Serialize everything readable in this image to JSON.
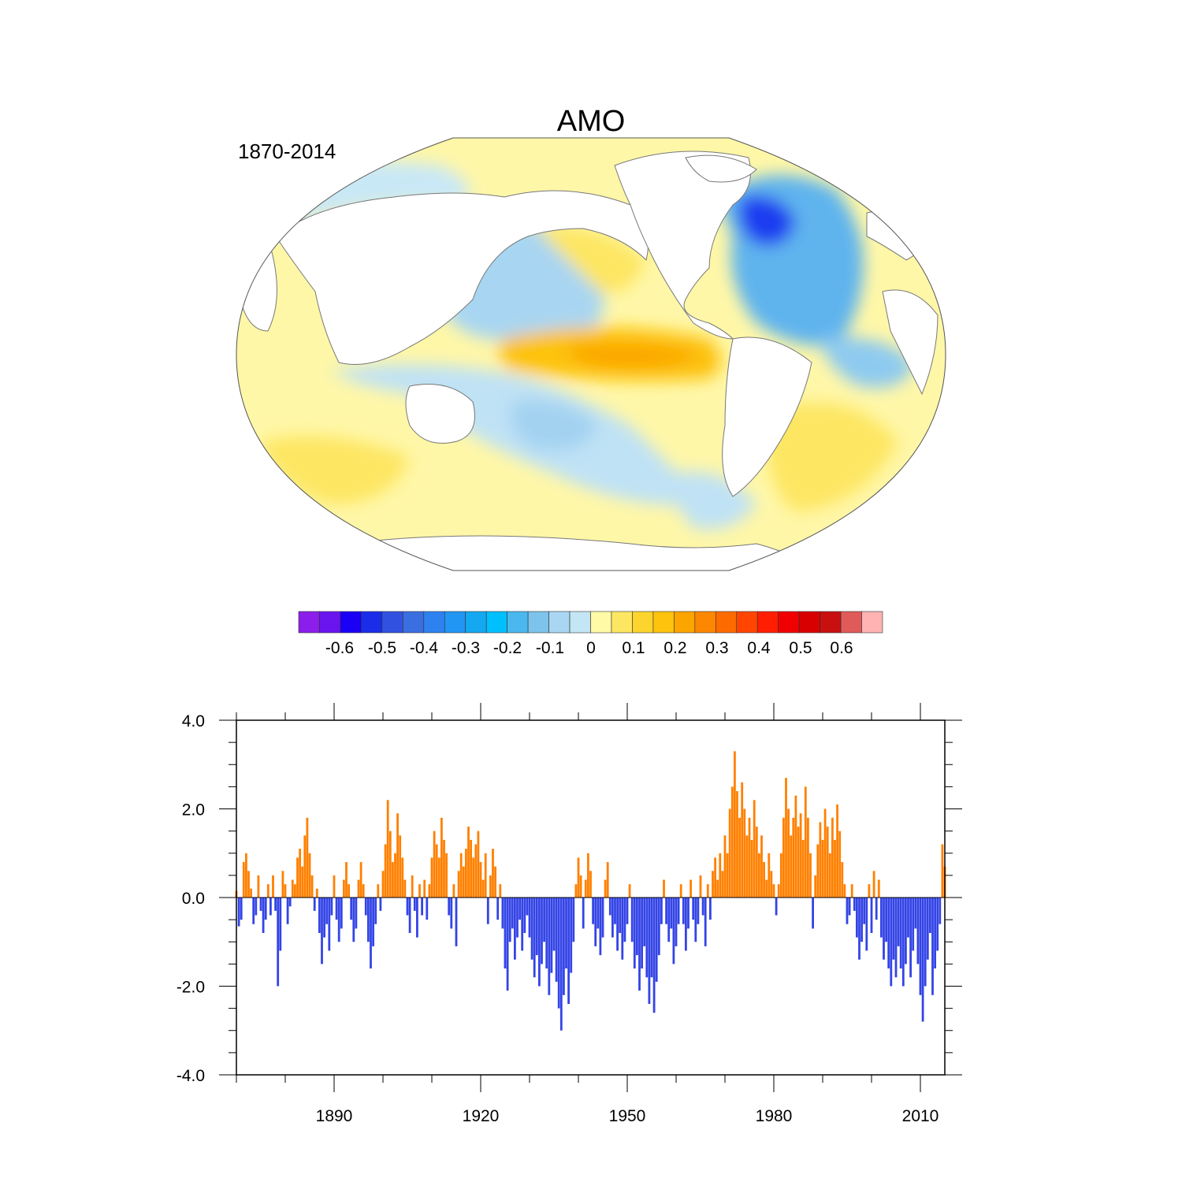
{
  "map": {
    "title": "AMO",
    "period": "1870-2014",
    "projection": "Winkel tripel / Robinson-like, Pacific-centered",
    "colors": {
      "land": "#ffffff",
      "strong_negative_north_atlantic": "#1a3cf0",
      "negative": "#8ecaf0",
      "weak_negative": "#bfe2f5",
      "weak_positive": "#fff7a8",
      "positive": "#fdd23a",
      "strong_positive_east_pacific": "#fca500"
    }
  },
  "colorbar": {
    "colors": [
      "#8b1eea",
      "#6a14ee",
      "#1a00f5",
      "#1a2ee8",
      "#3152e0",
      "#3a6fe2",
      "#2d82f0",
      "#2196f3",
      "#14a8f0",
      "#00bfff",
      "#4ab8ee",
      "#7dc3ec",
      "#a9d6f2",
      "#c3e5f4",
      "#fffaa6",
      "#fde662",
      "#fcd42d",
      "#fdc30d",
      "#fca500",
      "#fd8700",
      "#fd6a00",
      "#ff4500",
      "#ff1e00",
      "#f00000",
      "#d80000",
      "#c81010",
      "#e05a5a",
      "#ffb3b3"
    ],
    "labels": [
      "-0.6",
      "-0.5",
      "-0.4",
      "-0.3",
      "-0.2",
      "-0.1",
      "0",
      "0.1",
      "0.2",
      "0.3",
      "0.4",
      "0.5",
      "0.6"
    ]
  },
  "chart_data": {
    "type": "bar",
    "title": "",
    "xlabel": "",
    "ylabel": "",
    "x_range": [
      1870,
      2015
    ],
    "ylim": [
      -4.0,
      4.0
    ],
    "x_ticks": [
      "1890",
      "1920",
      "1950",
      "1980",
      "2010"
    ],
    "y_ticks": [
      "4.0",
      "2.0",
      "0.0",
      "-2.0",
      "-4.0"
    ],
    "positive_color": "#ff8000",
    "negative_color": "#3344e6",
    "grid": false,
    "legend": "none",
    "series": [
      {
        "name": "",
        "points": [
          [
            1870.0,
            0.15
          ],
          [
            1870.5,
            -0.65
          ],
          [
            1871.0,
            -0.5
          ],
          [
            1871.5,
            0.8
          ],
          [
            1872.0,
            1.0
          ],
          [
            1872.5,
            0.6
          ],
          [
            1873.0,
            0.2
          ],
          [
            1873.5,
            -0.6
          ],
          [
            1874.0,
            -0.4
          ],
          [
            1874.5,
            0.5
          ],
          [
            1875.0,
            -0.3
          ],
          [
            1875.5,
            -0.8
          ],
          [
            1876.0,
            -0.5
          ],
          [
            1876.5,
            0.3
          ],
          [
            1877.0,
            -0.4
          ],
          [
            1877.5,
            0.5
          ],
          [
            1878.0,
            -0.3
          ],
          [
            1878.5,
            -2.0
          ],
          [
            1879.0,
            -1.2
          ],
          [
            1879.5,
            0.6
          ],
          [
            1880.0,
            0.3
          ],
          [
            1880.5,
            -0.6
          ],
          [
            1881.0,
            -0.2
          ],
          [
            1881.5,
            0.4
          ],
          [
            1882.0,
            0.3
          ],
          [
            1882.5,
            0.9
          ],
          [
            1883.0,
            1.1
          ],
          [
            1883.5,
            0.7
          ],
          [
            1884.0,
            1.4
          ],
          [
            1884.5,
            1.8
          ],
          [
            1885.0,
            1.0
          ],
          [
            1885.5,
            0.5
          ],
          [
            1886.0,
            -0.3
          ],
          [
            1886.5,
            0.2
          ],
          [
            1887.0,
            -0.8
          ],
          [
            1887.5,
            -1.5
          ],
          [
            1888.0,
            -0.9
          ],
          [
            1888.5,
            -0.6
          ],
          [
            1889.0,
            -1.2
          ],
          [
            1889.5,
            -0.4
          ],
          [
            1890.0,
            0.5
          ],
          [
            1890.5,
            -0.5
          ],
          [
            1891.0,
            -1.0
          ],
          [
            1891.5,
            -0.7
          ],
          [
            1892.0,
            0.4
          ],
          [
            1892.5,
            0.8
          ],
          [
            1893.0,
            0.3
          ],
          [
            1893.5,
            -0.5
          ],
          [
            1894.0,
            -1.0
          ],
          [
            1894.5,
            -0.7
          ],
          [
            1895.0,
            0.4
          ],
          [
            1895.5,
            0.8
          ],
          [
            1896.0,
            0.3
          ],
          [
            1896.5,
            -0.4
          ],
          [
            1897.0,
            -1.0
          ],
          [
            1897.5,
            -1.6
          ],
          [
            1898.0,
            -1.1
          ],
          [
            1898.5,
            -0.6
          ],
          [
            1899.0,
            0.3
          ],
          [
            1899.5,
            -0.3
          ],
          [
            1900.0,
            0.6
          ],
          [
            1900.5,
            1.2
          ],
          [
            1901.0,
            2.2
          ],
          [
            1901.5,
            1.5
          ],
          [
            1902.0,
            0.8
          ],
          [
            1902.5,
            1.0
          ],
          [
            1903.0,
            1.9
          ],
          [
            1903.5,
            1.4
          ],
          [
            1904.0,
            0.9
          ],
          [
            1904.5,
            0.4
          ],
          [
            1905.0,
            -0.4
          ],
          [
            1905.5,
            -0.8
          ],
          [
            1906.0,
            0.5
          ],
          [
            1906.5,
            -0.3
          ],
          [
            1907.0,
            -0.9
          ],
          [
            1907.5,
            0.3
          ],
          [
            1908.0,
            -0.4
          ],
          [
            1908.5,
            0.4
          ],
          [
            1909.0,
            -0.5
          ],
          [
            1909.5,
            0.3
          ],
          [
            1910.0,
            0.9
          ],
          [
            1910.5,
            1.5
          ],
          [
            1911.0,
            1.2
          ],
          [
            1911.5,
            0.9
          ],
          [
            1912.0,
            1.8
          ],
          [
            1912.5,
            1.3
          ],
          [
            1913.0,
            1.0
          ],
          [
            1913.5,
            -0.4
          ],
          [
            1914.0,
            -0.7
          ],
          [
            1914.5,
            0.3
          ],
          [
            1915.0,
            -1.1
          ],
          [
            1915.5,
            0.6
          ],
          [
            1916.0,
            1.0
          ],
          [
            1916.5,
            0.7
          ],
          [
            1917.0,
            1.1
          ],
          [
            1917.5,
            1.6
          ],
          [
            1918.0,
            1.3
          ],
          [
            1918.5,
            0.9
          ],
          [
            1919.0,
            1.2
          ],
          [
            1919.5,
            1.5
          ],
          [
            1920.0,
            0.8
          ],
          [
            1920.5,
            0.4
          ],
          [
            1921.0,
            1.0
          ],
          [
            1921.5,
            -0.6
          ],
          [
            1922.0,
            0.5
          ],
          [
            1922.5,
            1.1
          ],
          [
            1923.0,
            0.7
          ],
          [
            1923.5,
            -0.5
          ],
          [
            1924.0,
            0.3
          ],
          [
            1924.5,
            -0.7
          ],
          [
            1925.0,
            -1.6
          ],
          [
            1925.5,
            -2.1
          ],
          [
            1926.0,
            -1.0
          ],
          [
            1926.5,
            -0.7
          ],
          [
            1927.0,
            -1.4
          ],
          [
            1927.5,
            -0.9
          ],
          [
            1928.0,
            -0.5
          ],
          [
            1928.5,
            -1.2
          ],
          [
            1929.0,
            -0.8
          ],
          [
            1929.5,
            -0.4
          ],
          [
            1930.0,
            -0.9
          ],
          [
            1930.5,
            -1.4
          ],
          [
            1931.0,
            -1.8
          ],
          [
            1931.5,
            -1.3
          ],
          [
            1932.0,
            -2.0
          ],
          [
            1932.5,
            -1.5
          ],
          [
            1933.0,
            -1.0
          ],
          [
            1933.5,
            -1.6
          ],
          [
            1934.0,
            -2.2
          ],
          [
            1934.5,
            -1.7
          ],
          [
            1935.0,
            -1.2
          ],
          [
            1935.5,
            -1.9
          ],
          [
            1936.0,
            -2.5
          ],
          [
            1936.5,
            -3.0
          ],
          [
            1937.0,
            -2.2
          ],
          [
            1937.5,
            -1.6
          ],
          [
            1938.0,
            -2.4
          ],
          [
            1938.5,
            -1.7
          ],
          [
            1939.0,
            -1.0
          ],
          [
            1939.5,
            0.3
          ],
          [
            1940.0,
            0.9
          ],
          [
            1940.5,
            0.5
          ],
          [
            1941.0,
            -0.7
          ],
          [
            1941.5,
            0.4
          ],
          [
            1942.0,
            1.0
          ],
          [
            1942.5,
            0.6
          ],
          [
            1943.0,
            -0.6
          ],
          [
            1943.5,
            -1.1
          ],
          [
            1944.0,
            -0.7
          ],
          [
            1944.5,
            -1.3
          ],
          [
            1945.0,
            -0.9
          ],
          [
            1945.5,
            0.4
          ],
          [
            1946.0,
            0.8
          ],
          [
            1946.5,
            -0.4
          ],
          [
            1947.0,
            -0.9
          ],
          [
            1947.5,
            -0.6
          ],
          [
            1948.0,
            -1.2
          ],
          [
            1948.5,
            -0.8
          ],
          [
            1949.0,
            -1.4
          ],
          [
            1949.5,
            -1.0
          ],
          [
            1950.0,
            -0.6
          ],
          [
            1950.5,
            0.3
          ],
          [
            1951.0,
            -1.0
          ],
          [
            1951.5,
            -1.6
          ],
          [
            1952.0,
            -1.3
          ],
          [
            1952.5,
            -2.1
          ],
          [
            1953.0,
            -1.6
          ],
          [
            1953.5,
            -1.1
          ],
          [
            1954.0,
            -1.8
          ],
          [
            1954.5,
            -2.4
          ],
          [
            1955.0,
            -1.8
          ],
          [
            1955.5,
            -2.6
          ],
          [
            1956.0,
            -1.9
          ],
          [
            1956.5,
            -1.3
          ],
          [
            1957.0,
            -0.6
          ],
          [
            1957.5,
            0.4
          ],
          [
            1958.0,
            -0.6
          ],
          [
            1958.5,
            -1.0
          ],
          [
            1959.0,
            -0.7
          ],
          [
            1959.5,
            -1.5
          ],
          [
            1960.0,
            -1.1
          ],
          [
            1960.5,
            -0.6
          ],
          [
            1961.0,
            0.3
          ],
          [
            1961.5,
            -0.6
          ],
          [
            1962.0,
            -1.2
          ],
          [
            1962.5,
            -0.7
          ],
          [
            1963.0,
            0.4
          ],
          [
            1963.5,
            -0.5
          ],
          [
            1964.0,
            -1.0
          ],
          [
            1964.5,
            -0.6
          ],
          [
            1965.0,
            0.5
          ],
          [
            1965.5,
            -0.4
          ],
          [
            1966.0,
            -1.1
          ],
          [
            1966.5,
            0.3
          ],
          [
            1967.0,
            -0.5
          ],
          [
            1967.5,
            0.6
          ],
          [
            1968.0,
            0.9
          ],
          [
            1968.5,
            0.4
          ],
          [
            1969.0,
            1.0
          ],
          [
            1969.5,
            0.6
          ],
          [
            1970.0,
            1.4
          ],
          [
            1970.5,
            1.0
          ],
          [
            1971.0,
            2.0
          ],
          [
            1971.5,
            2.5
          ],
          [
            1972.0,
            3.3
          ],
          [
            1972.5,
            2.4
          ],
          [
            1973.0,
            1.8
          ],
          [
            1973.5,
            2.6
          ],
          [
            1974.0,
            2.0
          ],
          [
            1974.5,
            1.4
          ],
          [
            1975.0,
            1.8
          ],
          [
            1975.5,
            1.3
          ],
          [
            1976.0,
            2.2
          ],
          [
            1976.5,
            1.6
          ],
          [
            1977.0,
            1.0
          ],
          [
            1977.5,
            1.4
          ],
          [
            1978.0,
            0.8
          ],
          [
            1978.5,
            0.4
          ],
          [
            1979.0,
            1.0
          ],
          [
            1979.5,
            0.6
          ],
          [
            1980.0,
            0.3
          ],
          [
            1980.5,
            -0.4
          ],
          [
            1981.0,
            0.3
          ],
          [
            1981.5,
            1.0
          ],
          [
            1982.0,
            1.8
          ],
          [
            1982.5,
            2.7
          ],
          [
            1983.0,
            2.0
          ],
          [
            1983.5,
            1.4
          ],
          [
            1984.0,
            1.8
          ],
          [
            1984.5,
            2.3
          ],
          [
            1985.0,
            1.6
          ],
          [
            1985.5,
            1.9
          ],
          [
            1986.0,
            1.3
          ],
          [
            1986.5,
            2.5
          ],
          [
            1987.0,
            1.8
          ],
          [
            1987.5,
            1.0
          ],
          [
            1988.0,
            -0.7
          ],
          [
            1988.5,
            0.5
          ],
          [
            1989.0,
            1.2
          ],
          [
            1989.5,
            1.7
          ],
          [
            1990.0,
            1.3
          ],
          [
            1990.5,
            2.0
          ],
          [
            1991.0,
            1.6
          ],
          [
            1991.5,
            1.0
          ],
          [
            1992.0,
            1.8
          ],
          [
            1992.5,
            1.3
          ],
          [
            1993.0,
            2.1
          ],
          [
            1993.5,
            1.5
          ],
          [
            1994.0,
            0.8
          ],
          [
            1994.5,
            0.3
          ],
          [
            1995.0,
            -0.6
          ],
          [
            1995.5,
            -0.4
          ],
          [
            1996.0,
            0.3
          ],
          [
            1996.5,
            -0.3
          ],
          [
            1997.0,
            -0.9
          ],
          [
            1997.5,
            -1.4
          ],
          [
            1998.0,
            -1.0
          ],
          [
            1998.5,
            -0.6
          ],
          [
            1999.0,
            -1.2
          ],
          [
            1999.5,
            0.3
          ],
          [
            2000.0,
            -0.8
          ],
          [
            2000.5,
            0.6
          ],
          [
            2001.0,
            -0.5
          ],
          [
            2001.5,
            0.4
          ],
          [
            2002.0,
            -0.9
          ],
          [
            2002.5,
            -1.4
          ],
          [
            2003.0,
            -1.0
          ],
          [
            2003.5,
            -1.6
          ],
          [
            2004.0,
            -2.0
          ],
          [
            2004.5,
            -1.4
          ],
          [
            2005.0,
            -1.8
          ],
          [
            2005.5,
            -1.1
          ],
          [
            2006.0,
            -1.6
          ],
          [
            2006.5,
            -2.0
          ],
          [
            2007.0,
            -1.5
          ],
          [
            2007.5,
            -0.9
          ],
          [
            2008.0,
            -1.8
          ],
          [
            2008.5,
            -1.2
          ],
          [
            2009.0,
            -0.7
          ],
          [
            2009.5,
            -1.5
          ],
          [
            2010.0,
            -2.2
          ],
          [
            2010.5,
            -2.8
          ],
          [
            2011.0,
            -2.0
          ],
          [
            2011.5,
            -1.4
          ],
          [
            2012.0,
            -0.8
          ],
          [
            2012.5,
            -2.2
          ],
          [
            2013.0,
            -1.6
          ],
          [
            2013.5,
            -1.2
          ],
          [
            2014.0,
            -0.6
          ],
          [
            2014.5,
            1.2
          ],
          [
            2015.0,
            0.7
          ]
        ]
      }
    ]
  }
}
